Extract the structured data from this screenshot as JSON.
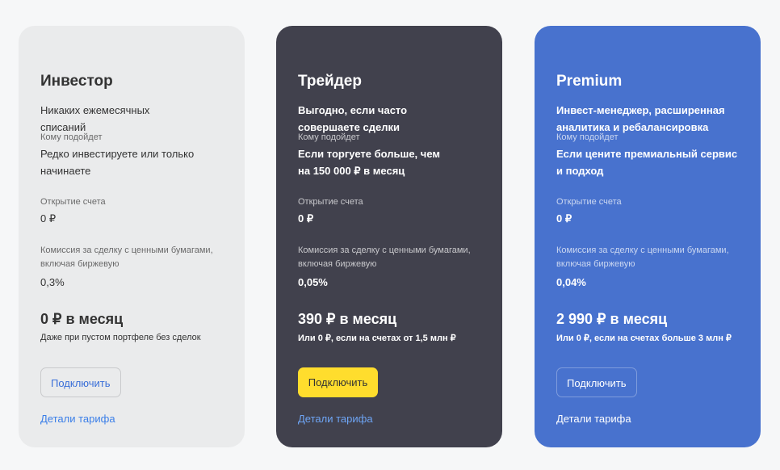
{
  "plans": [
    {
      "title": "Инвестор",
      "description": "Никаких ежемесячных\nсписаний",
      "fit_label": "Кому подойдет",
      "fit_value": "Редко инвестируете или только начинаете",
      "open_label": "Открытие счета",
      "open_value": "0 ₽",
      "commission_label": "Комиссия за сделку с ценными бумагами, включая биржевую",
      "commission_value": "0,3%",
      "price": "0 ₽ в месяц",
      "price_note": "Даже при пустом портфеле без сделок",
      "button": "Подключить",
      "details": "Детали тарифа"
    },
    {
      "title": "Трейдер",
      "description": "Выгодно, если часто совершаете сделки",
      "fit_label": "Кому подойдет",
      "fit_value": "Если торгуете больше, чем\nна 150 000 ₽ в месяц",
      "open_label": "Открытие счета",
      "open_value": "0 ₽",
      "commission_label": "Комиссия за сделку с ценными бумагами, включая биржевую",
      "commission_value": "0,05%",
      "price": "390 ₽ в месяц",
      "price_note": "Или 0 ₽, если на счетах от 1,5 млн ₽",
      "button": "Подключить",
      "details": "Детали тарифа"
    },
    {
      "title": "Premium",
      "description": "Инвест-менеджер, расширенная аналитика и ребалансировка",
      "fit_label": "Кому подойдет",
      "fit_value": "Если цените премиальный сервис\nи подход",
      "open_label": "Открытие счета",
      "open_value": "0 ₽",
      "commission_label": "Комиссия за сделку с ценными бумагами, включая биржевую",
      "commission_value": "0,04%",
      "price": "2 990 ₽ в месяц",
      "price_note": "Или 0 ₽, если на счетах больше 3 млн ₽",
      "button": "Подключить",
      "details": "Детали тарифа"
    }
  ],
  "colors": {
    "investor_bg": "#eaebec",
    "trader_bg": "#41414d",
    "premium_bg": "#4872ce",
    "accent_yellow": "#ffdd2d"
  }
}
